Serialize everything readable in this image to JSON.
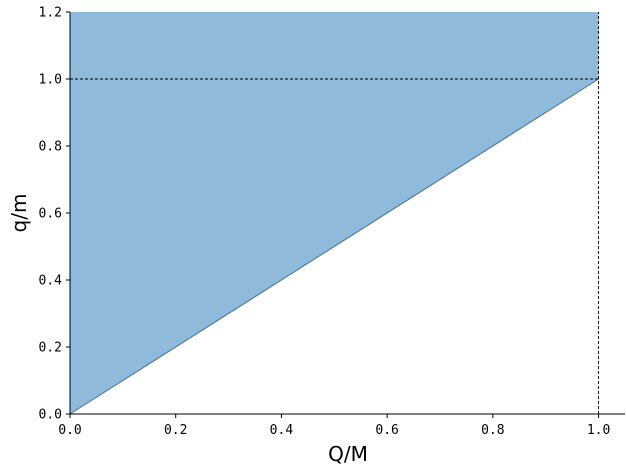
{
  "chart_data": {
    "type": "area",
    "title": "",
    "xlabel": "Q/M",
    "ylabel": "q/m",
    "xlim": [
      0.0,
      1.05
    ],
    "ylim": [
      0.0,
      1.2
    ],
    "x_ticks": [
      "0.0",
      "0.2",
      "0.4",
      "0.6",
      "0.8",
      "1.0"
    ],
    "x_tick_values": [
      0.0,
      0.2,
      0.4,
      0.6,
      0.8,
      1.0
    ],
    "y_ticks": [
      "0.0",
      "0.2",
      "0.4",
      "0.6",
      "0.8",
      "1.0",
      "1.2"
    ],
    "y_tick_values": [
      0.0,
      0.2,
      0.4,
      0.6,
      0.8,
      1.0,
      1.2
    ],
    "region": {
      "lower_boundary": [
        [
          0.0,
          0.0
        ],
        [
          1.0,
          1.0
        ]
      ],
      "upper_boundary": [
        [
          0.0,
          1.2
        ],
        [
          1.0,
          1.2
        ]
      ]
    },
    "line": {
      "x": [
        0.0,
        1.0
      ],
      "y": [
        0.0,
        1.0
      ]
    },
    "reference_lines": [
      {
        "orientation": "horizontal",
        "value": 1.0,
        "from": 0.0,
        "to": 1.0,
        "style": "dashed"
      },
      {
        "orientation": "vertical",
        "value": 1.0,
        "from": 0.0,
        "to": 1.2,
        "style": "dashed"
      }
    ],
    "grid": false,
    "colors": {
      "fill": "#8fbad9",
      "line": "#2a7ab8",
      "axis": "#000000"
    }
  }
}
